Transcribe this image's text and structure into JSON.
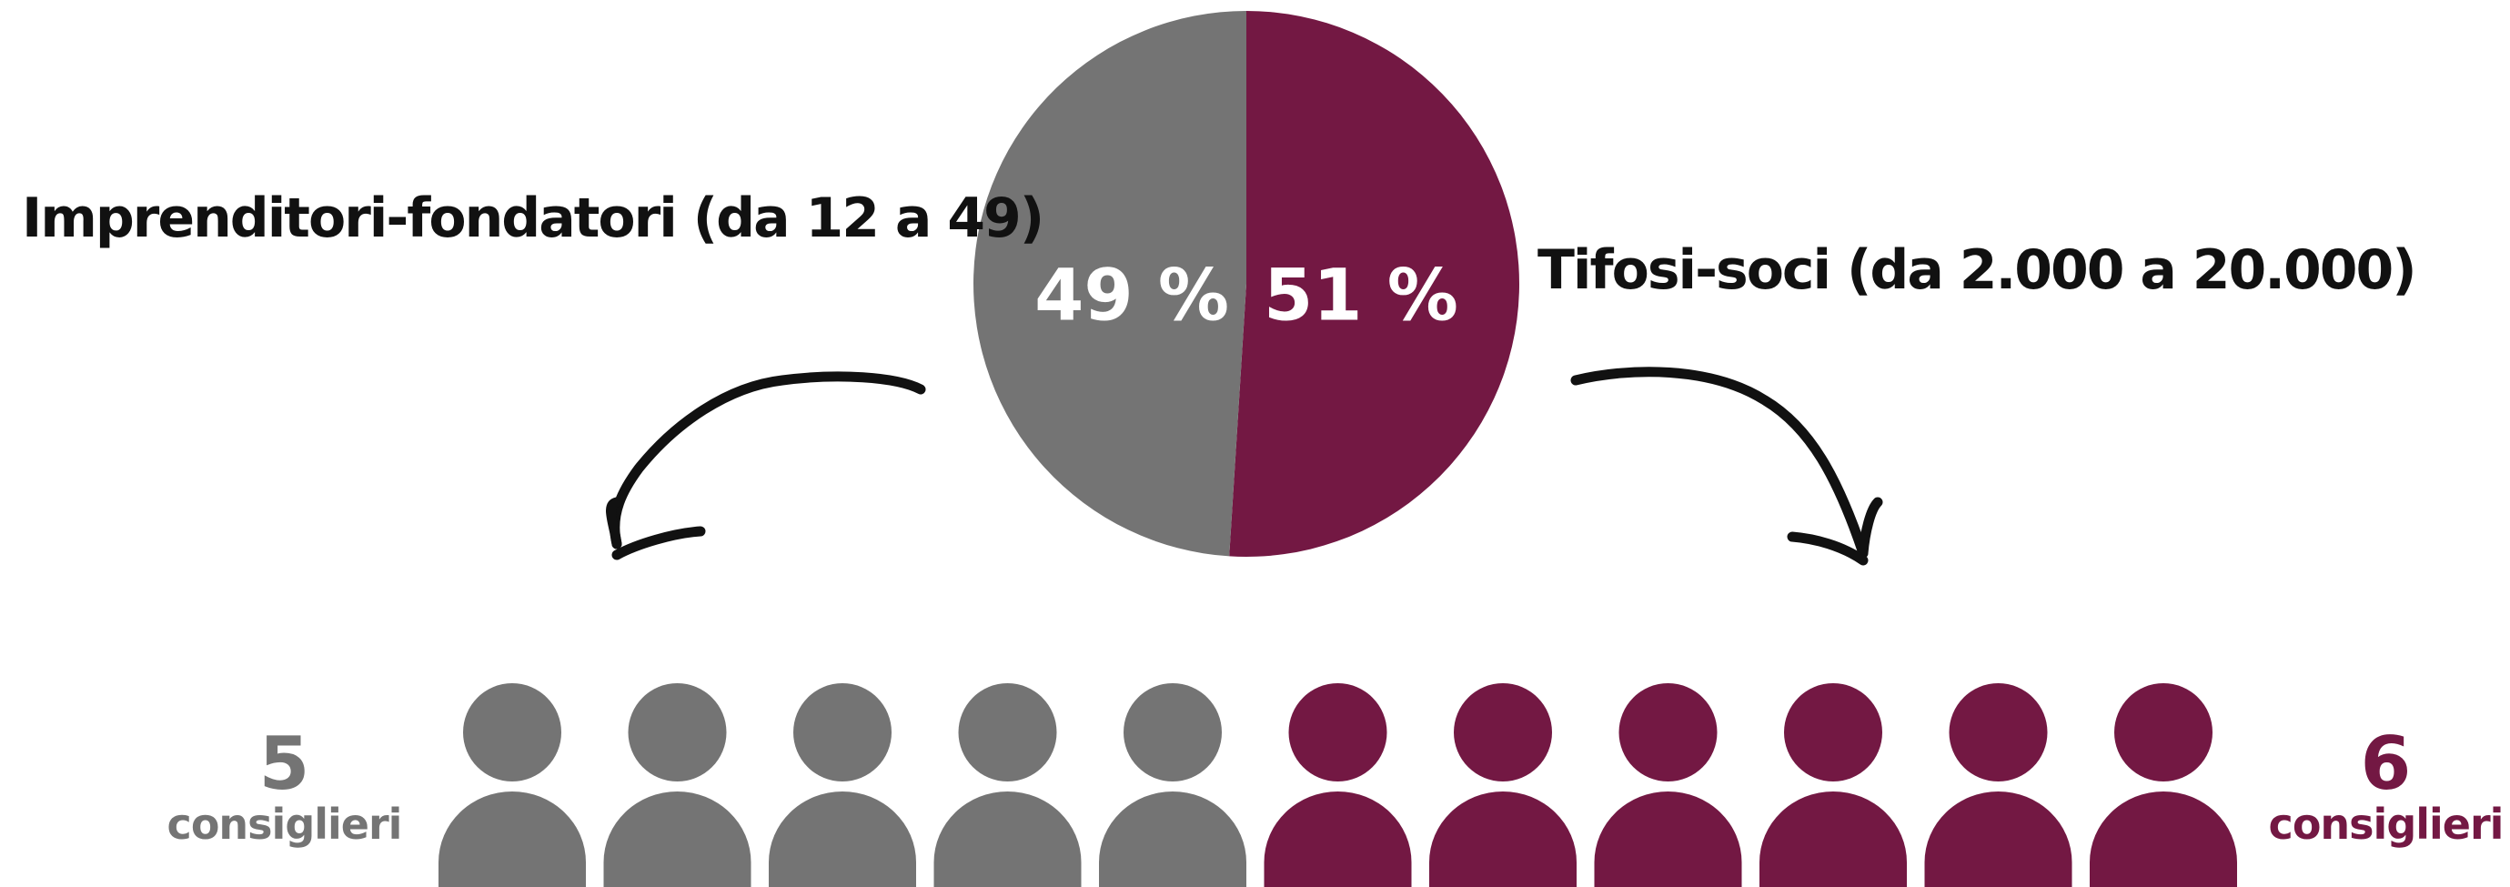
{
  "colors": {
    "grey": "#747474",
    "maroon": "#731843",
    "arrow": "#111111",
    "pct_text": "#ffffff"
  },
  "labels": {
    "left": "Imprenditori-fondatori (da 12 a 49)",
    "right": "Tifosi-soci (da 2.000 a 20.000)"
  },
  "counters": {
    "left_number": "5",
    "left_word": "consiglieri",
    "right_number": "6",
    "right_word": "consiglieri"
  },
  "chart_data": [
    {
      "type": "pie",
      "slices": [
        {
          "label": "49 %",
          "value": 49,
          "color": "#747474"
        },
        {
          "label": "51 %",
          "value": 51,
          "color": "#731843"
        }
      ]
    },
    {
      "type": "pictogram",
      "icon": "person-icon",
      "groups": [
        {
          "count": 5,
          "color": "#747474",
          "caption": "5 consiglieri"
        },
        {
          "count": 6,
          "color": "#731843",
          "caption": "6 consiglieri"
        }
      ]
    }
  ]
}
